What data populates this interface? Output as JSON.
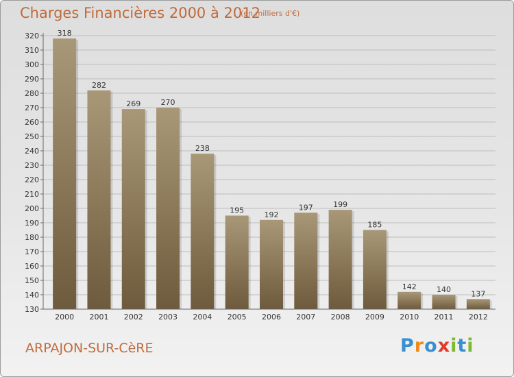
{
  "header": {
    "title": "Charges Financières 2000 à 2012",
    "unit_note": "(en milliers d'€)"
  },
  "footer": {
    "commune": "ARPAJON-SUR-CèRE",
    "brand_letters": [
      {
        "char": "P",
        "color": "#3a8fd0"
      },
      {
        "char": "r",
        "color": "#f08a1e"
      },
      {
        "char": "o",
        "color": "#3a8fd0"
      },
      {
        "char": "x",
        "color": "#e23a2a"
      },
      {
        "char": "i",
        "color": "#7dbb2e"
      },
      {
        "char": "t",
        "color": "#3a8fd0"
      },
      {
        "char": "i",
        "color": "#7dbb2e"
      }
    ]
  },
  "colors": {
    "bar_top": "#a89878",
    "bar_bottom": "#6e5a3c",
    "text_accent": "#c06a3a"
  },
  "chart_data": {
    "type": "bar",
    "title": "Charges Financières 2000 à 2012",
    "subtitle": "(en milliers d'€)",
    "xlabel": "",
    "ylabel": "",
    "categories": [
      "2000",
      "2001",
      "2002",
      "2003",
      "2004",
      "2005",
      "2006",
      "2007",
      "2008",
      "2009",
      "2010",
      "2011",
      "2012"
    ],
    "values": [
      318,
      282,
      269,
      270,
      238,
      195,
      192,
      197,
      199,
      185,
      142,
      140,
      137
    ],
    "ylim": [
      130,
      320
    ],
    "yticks": [
      130,
      140,
      150,
      160,
      170,
      180,
      190,
      200,
      210,
      220,
      230,
      240,
      250,
      260,
      270,
      280,
      290,
      300,
      310,
      320
    ],
    "grid": true,
    "legend": "none"
  }
}
